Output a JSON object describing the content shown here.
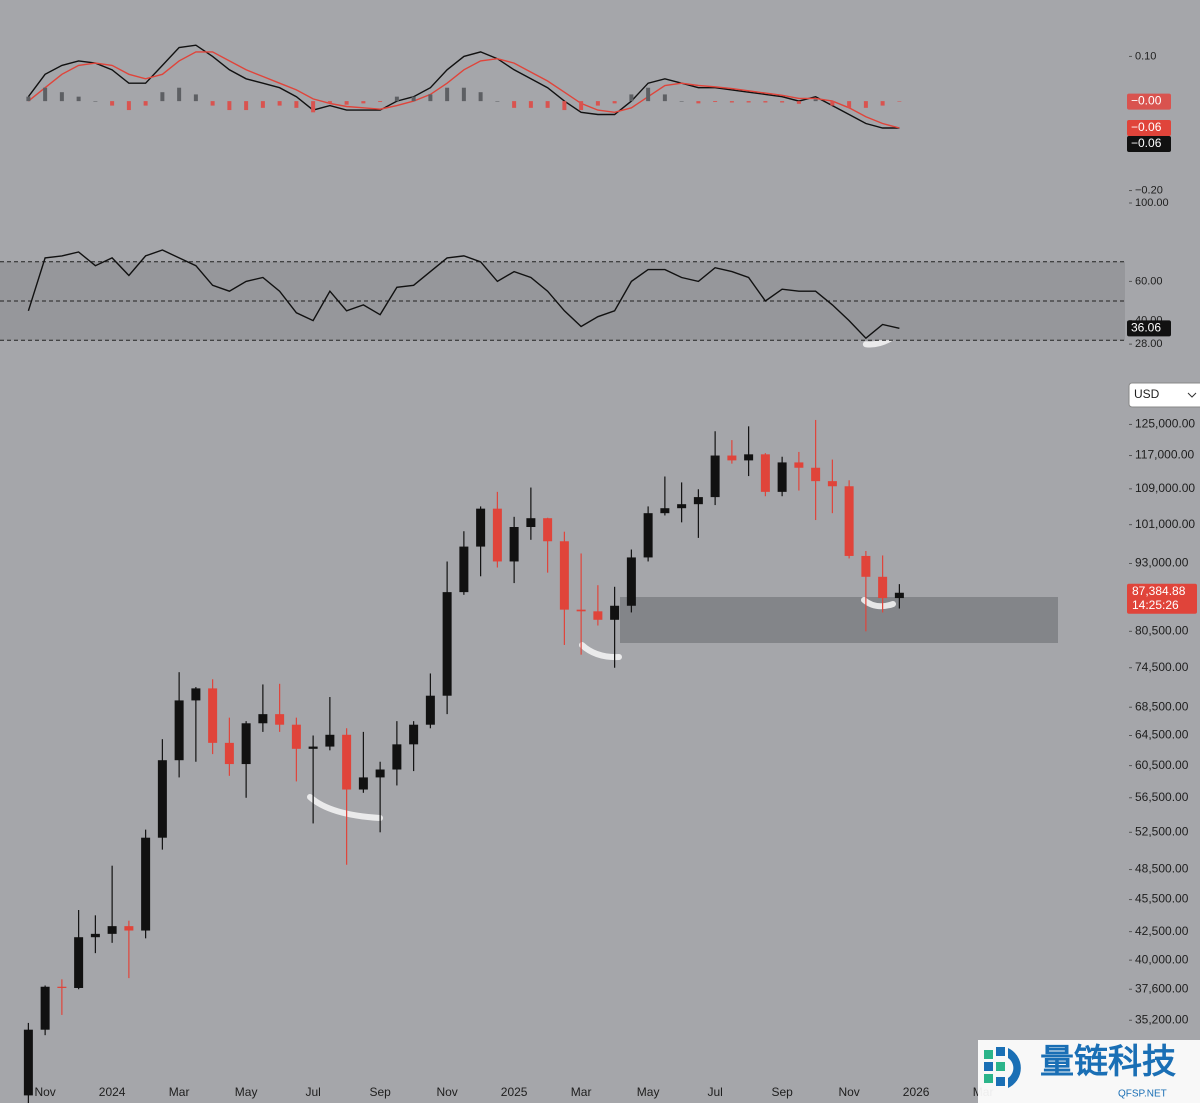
{
  "chart_data": [
    {
      "type": "macd",
      "ylim": [
        -0.22,
        0.13
      ],
      "yticks": [
        {
          "value": 0.1,
          "label": "0.10"
        },
        {
          "value": -0.2,
          "label": "−0.20"
        }
      ],
      "series": [
        {
          "type": "line",
          "color": "#111111",
          "last_label": "−0.06",
          "values": [
            0.01,
            0.06,
            0.08,
            0.09,
            0.085,
            0.07,
            0.04,
            0.04,
            0.08,
            0.12,
            0.125,
            0.1,
            0.07,
            0.05,
            0.04,
            0.03,
            0.01,
            -0.02,
            -0.01,
            -0.02,
            -0.02,
            -0.02,
            0,
            0.01,
            0.03,
            0.07,
            0.1,
            0.11,
            0.095,
            0.07,
            0.05,
            0.03,
            0,
            -0.025,
            -0.03,
            -0.03,
            0,
            0.04,
            0.05,
            0.04,
            0.03,
            0.03,
            0.025,
            0.02,
            0.015,
            0.01,
            0,
            0.01,
            -0.01,
            -0.03,
            -0.05,
            -0.06,
            -0.06,
            null,
            null,
            null,
            null,
            null
          ]
        },
        {
          "type": "line",
          "color": "#e0443a",
          "last_label": "−0.06",
          "values": [
            0,
            0.03,
            0.06,
            0.08,
            0.085,
            0.08,
            0.06,
            0.05,
            0.06,
            0.09,
            0.11,
            0.11,
            0.09,
            0.07,
            0.055,
            0.04,
            0.025,
            0.005,
            -0.005,
            -0.012,
            -0.015,
            -0.018,
            -0.01,
            0,
            0.015,
            0.04,
            0.07,
            0.09,
            0.095,
            0.085,
            0.065,
            0.045,
            0.02,
            -0.005,
            -0.02,
            -0.025,
            -0.015,
            0.01,
            0.035,
            0.04,
            0.035,
            0.032,
            0.028,
            0.023,
            0.018,
            0.013,
            0.006,
            0.006,
            0,
            -0.015,
            -0.035,
            -0.05,
            -0.06,
            null,
            null,
            null,
            null,
            null
          ]
        },
        {
          "type": "histogram",
          "color": "#5d5f63",
          "down_color": "#d9534f",
          "last_label": "−0.00",
          "values": [
            0.01,
            0.03,
            0.02,
            0.01,
            0,
            -0.01,
            -0.02,
            -0.01,
            0.02,
            0.03,
            0.015,
            -0.01,
            -0.02,
            -0.02,
            -0.015,
            -0.01,
            -0.015,
            -0.025,
            -0.005,
            -0.008,
            -0.005,
            -0.002,
            0.01,
            0.01,
            0.015,
            0.03,
            0.03,
            0.02,
            0,
            -0.015,
            -0.015,
            -0.015,
            -0.02,
            -0.02,
            -0.01,
            -0.005,
            0.015,
            0.03,
            0.015,
            0,
            -0.005,
            -0.002,
            -0.003,
            -0.003,
            -0.003,
            -0.003,
            -0.006,
            0.004,
            -0.01,
            -0.015,
            -0.015,
            -0.01,
            -0.001,
            null,
            null,
            null,
            null,
            null
          ]
        }
      ]
    },
    {
      "type": "rsi",
      "ylim": [
        25,
        100
      ],
      "color": "#111111",
      "levels": [
        70,
        50,
        30
      ],
      "yticks": [
        {
          "value": 100,
          "label": "100.00"
        },
        {
          "value": 60,
          "label": "60.00"
        },
        {
          "value": 40,
          "label": "40.00"
        },
        {
          "value": 28,
          "label": "28.00"
        }
      ],
      "values": [
        45,
        72,
        73,
        75,
        68,
        72,
        63,
        73,
        76,
        72,
        68,
        58,
        55,
        60,
        62,
        55,
        44,
        40,
        55,
        45,
        48,
        43,
        57,
        58,
        65,
        72,
        73,
        70,
        60,
        65,
        62,
        55,
        45,
        37,
        42,
        45,
        60,
        66,
        66,
        62,
        60,
        67,
        65,
        62,
        50,
        56,
        55,
        55,
        48,
        40,
        31,
        38,
        36.06,
        null,
        null,
        null,
        null,
        null
      ]
    },
    {
      "type": "candlestick",
      "log": true,
      "grid": false,
      "currency": "USD",
      "up_color": "#111111",
      "down_color": "#e0443a",
      "ylim": [
        31800,
        130000
      ],
      "yticks": [
        {
          "value": 125000,
          "label": "125,000.00"
        },
        {
          "value": 117000,
          "label": "117,000.00"
        },
        {
          "value": 109000,
          "label": "109,000.00"
        },
        {
          "value": 101000,
          "label": "101,000.00"
        },
        {
          "value": 93000,
          "label": "93,000.00"
        },
        {
          "value": 80500,
          "label": "80,500.00"
        },
        {
          "value": 74500,
          "label": "74,500.00"
        },
        {
          "value": 68500,
          "label": "68,500.00"
        },
        {
          "value": 64500,
          "label": "64,500.00"
        },
        {
          "value": 60500,
          "label": "60,500.00"
        },
        {
          "value": 56500,
          "label": "56,500.00"
        },
        {
          "value": 52500,
          "label": "52,500.00"
        },
        {
          "value": 48500,
          "label": "48,500.00"
        },
        {
          "value": 45500,
          "label": "45,500.00"
        },
        {
          "value": 42500,
          "label": "42,500.00"
        },
        {
          "value": 40000,
          "label": "40,000.00"
        },
        {
          "value": 37600,
          "label": "37,600.00"
        },
        {
          "value": 35200,
          "label": "35,200.00"
        }
      ],
      "categories": [
        null,
        "Nov",
        null,
        null,
        null,
        "2024",
        null,
        null,
        null,
        "Mar",
        null,
        null,
        null,
        "May",
        null,
        null,
        null,
        "Jul",
        null,
        null,
        null,
        "Sep",
        null,
        null,
        null,
        "Nov",
        null,
        null,
        null,
        "2025",
        null,
        null,
        null,
        "Mar",
        null,
        null,
        null,
        "May",
        null,
        null,
        null,
        "Jul",
        null,
        null,
        null,
        "Sep",
        null,
        null,
        null,
        "Nov",
        null,
        null,
        null,
        "2026",
        null,
        null,
        null,
        "Mar"
      ],
      "open": [
        30000,
        34500,
        37800,
        37700,
        42000,
        42300,
        43000,
        42600,
        51900,
        61200,
        69500,
        71300,
        63500,
        60700,
        66200,
        67500,
        66000,
        62700,
        63000,
        64600,
        57500,
        59000,
        60000,
        63300,
        66000,
        70200,
        87500,
        96400,
        104500,
        93400,
        100500,
        102400,
        97500,
        84300,
        84000,
        82500,
        85000,
        94200,
        103500,
        104600,
        105500,
        107100,
        117000,
        115800,
        117300,
        108300,
        115300,
        114000,
        110800,
        109600,
        94500,
        90400,
        86400,
        null,
        null,
        null,
        null,
        null
      ],
      "high": [
        35000,
        37900,
        38400,
        44500,
        44000,
        48900,
        43500,
        52800,
        64000,
        73800,
        71500,
        72700,
        67000,
        66500,
        71900,
        72000,
        67000,
        64500,
        70000,
        65500,
        65000,
        61000,
        66500,
        66500,
        73600,
        93400,
        99600,
        105000,
        108300,
        102700,
        109300,
        102500,
        99500,
        95000,
        88800,
        88500,
        95800,
        105000,
        111900,
        110500,
        108900,
        123200,
        120900,
        124500,
        117600,
        116700,
        117900,
        126200,
        116000,
        111000,
        95500,
        94600,
        89000,
        null,
        null,
        null,
        null,
        null
      ],
      "low": [
        29500,
        34100,
        35600,
        37600,
        40600,
        41500,
        38500,
        41900,
        50600,
        59000,
        61000,
        62000,
        59200,
        56500,
        65000,
        65000,
        58500,
        53500,
        62500,
        49000,
        57100,
        52500,
        58000,
        59800,
        65500,
        67500,
        87000,
        90500,
        92200,
        89200,
        97800,
        91200,
        78200,
        76600,
        81500,
        74500,
        83800,
        93400,
        103000,
        101500,
        98200,
        105300,
        115000,
        112000,
        107300,
        107300,
        108600,
        102000,
        103500,
        94000,
        80500,
        83800,
        84500,
        null,
        null,
        null,
        null,
        null
      ],
      "close": [
        34500,
        37800,
        37700,
        42000,
        42300,
        43000,
        42600,
        51900,
        61200,
        69500,
        71300,
        63500,
        60700,
        66200,
        67500,
        66000,
        62700,
        63000,
        64600,
        57500,
        59000,
        60000,
        63300,
        66000,
        70200,
        87500,
        96400,
        104500,
        93400,
        100500,
        102400,
        97500,
        84300,
        84000,
        82500,
        85000,
        94200,
        103500,
        104600,
        105500,
        107100,
        117000,
        115800,
        117300,
        108300,
        115300,
        114000,
        110800,
        109600,
        94500,
        90400,
        86400,
        87384.88,
        null,
        null,
        null,
        null,
        null
      ],
      "last_label": "87,384.88",
      "countdown": "14:25:26"
    }
  ],
  "watermark": {
    "title": "量链科技",
    "url": "QFSP.NET"
  }
}
